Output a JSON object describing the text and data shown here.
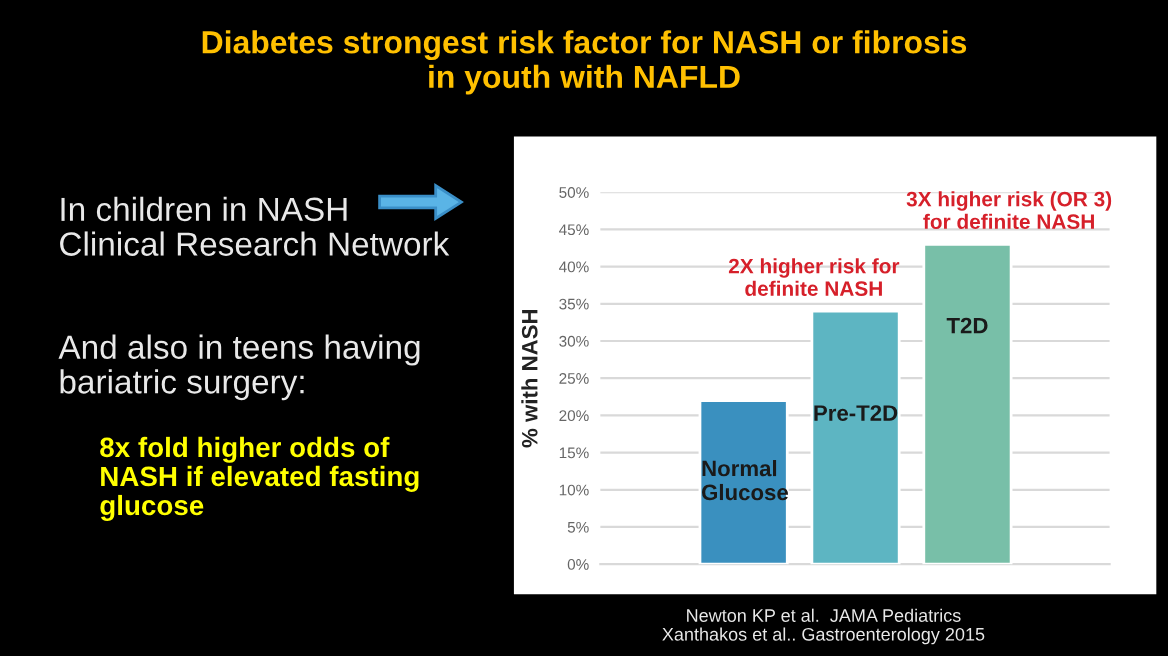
{
  "chart_data": {
    "type": "bar",
    "title": "Diabetes strongest risk factor for NASH or fibrosis\nin youth with NAFLD",
    "ylabel": "% with NASH",
    "categories": [
      "Normal\nGlucose",
      "Pre-T2D",
      "T2D"
    ],
    "values": [
      22,
      34,
      43
    ],
    "colors": [
      "#3a90bf",
      "#5db5c2",
      "#78bfa8"
    ],
    "ylim": [
      0,
      50
    ],
    "yticks": [
      {
        "value": 0,
        "label": "0%"
      },
      {
        "value": 5,
        "label": "5%"
      },
      {
        "value": 10,
        "label": "10%"
      },
      {
        "value": 15,
        "label": "15%"
      },
      {
        "value": 20,
        "label": "20%"
      },
      {
        "value": 25,
        "label": "25%"
      },
      {
        "value": 30,
        "label": "30%"
      },
      {
        "value": 35,
        "label": "35%"
      },
      {
        "value": 40,
        "label": "40%"
      },
      {
        "value": 45,
        "label": "45%"
      },
      {
        "value": 50,
        "label": "50%"
      }
    ],
    "grid": "y",
    "annotations": [
      {
        "text": "2X higher risk for\ndefinite NASH",
        "x": "Pre-T2D",
        "y": 34
      },
      {
        "text": "3X higher risk (OR 3)\nfor definite NASH",
        "x": "T2D",
        "y": 43
      },
      "In children in NASH\nClinical Research Network",
      "And also in teens having\nbariatric surgery:",
      "8x fold higher odds of\nNASH if elevated fasting\nglucose",
      "Newton KP et al.  JAMA Pediatrics\nXanthakos et al.. Gastroenterology 2015"
    ]
  }
}
